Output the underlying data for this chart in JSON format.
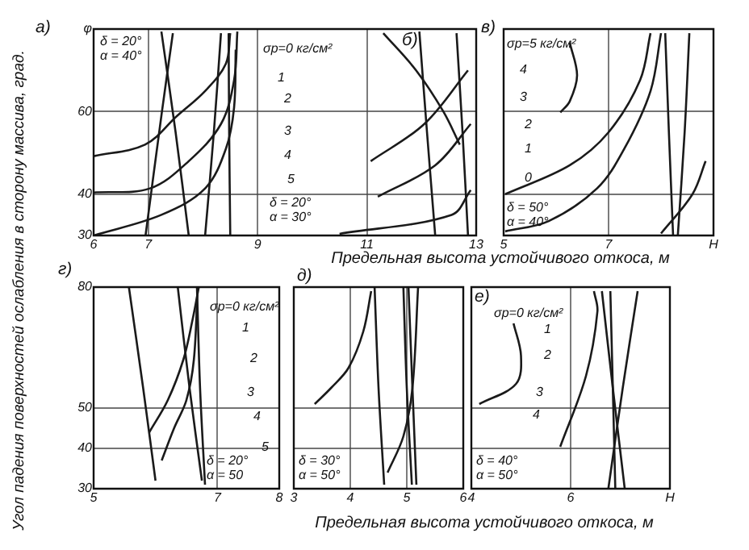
{
  "chart_data": [
    {
      "type": "line",
      "title": "а)",
      "ylabel": "Угол падения поверхностей ослабления в сторону массива, град.",
      "xlabel": "Предельная высота устойчивого откоса, м",
      "xlim": [
        6,
        13
      ],
      "xticks": [
        6,
        7,
        9,
        11,
        13
      ],
      "ylim": [
        30,
        80
      ],
      "yticks": [
        30,
        40,
        60,
        {
          "value": 80,
          "label": "φ"
        }
      ],
      "grid": true,
      "annotations": [
        "б)",
        "δ = 20°\nα = 40°",
        "δ = 20°\nα = 30°",
        "σр=0 кг/см²",
        "1",
        "2",
        "3",
        "4",
        "5"
      ],
      "series": [
        {
          "color": "#1a1a1a",
          "x": [
            6,
            6.94,
            7.53,
            8.04,
            8.42,
            8.5
          ],
          "values": [
            49.2,
            52,
            59,
            65,
            71.6,
            79
          ]
        },
        {
          "color": "#1a1a1a",
          "x": [
            6,
            7.03,
            7.74,
            8.33,
            8.57,
            8.63
          ],
          "values": [
            40.4,
            41.4,
            48,
            57,
            67.6,
            79.4
          ]
        },
        {
          "color": "#1a1a1a",
          "x": [
            6,
            7.24,
            8.04,
            8.42,
            8.57,
            8.6
          ],
          "values": [
            30,
            35,
            41.4,
            51,
            61,
            75
          ]
        },
        {
          "color": "#1a1a1a",
          "x": [
            7.24,
            7.5,
            7.74
          ],
          "values": [
            79.4,
            55,
            30
          ]
        },
        {
          "color": "#1a1a1a",
          "x": [
            7.45,
            7.25,
            6.95
          ],
          "values": [
            79,
            60,
            30
          ]
        },
        {
          "color": "#1a1a1a",
          "x": [
            8.33,
            8.2,
            8.04
          ],
          "values": [
            79,
            55,
            30
          ]
        },
        {
          "color": "#1a1a1a",
          "x": [
            8.47,
            8.48,
            8.5
          ],
          "values": [
            79,
            55,
            30
          ]
        },
        {
          "color": "#1a1a1a",
          "x": [
            10.5,
            12.55,
            12.9
          ],
          "values": [
            30.4,
            35,
            41
          ]
        },
        {
          "color": "#1a1a1a",
          "x": [
            11.2,
            12.25,
            12.9
          ],
          "values": [
            39.4,
            47,
            57
          ]
        },
        {
          "color": "#1a1a1a",
          "x": [
            11.07,
            12.05,
            12.85
          ],
          "values": [
            48,
            57,
            70
          ]
        },
        {
          "color": "#1a1a1a",
          "x": [
            11.3,
            11.9,
            12.4,
            12.7
          ],
          "values": [
            79,
            70,
            60,
            52
          ]
        },
        {
          "color": "#1a1a1a",
          "x": [
            11.96,
            12.1,
            12.25
          ],
          "values": [
            79.4,
            55,
            30
          ]
        },
        {
          "color": "#1a1a1a",
          "x": [
            12.64,
            12.75,
            12.85
          ],
          "values": [
            79,
            55,
            30
          ]
        }
      ]
    },
    {
      "type": "line",
      "title": "в)",
      "xlim": [
        5,
        9
      ],
      "xticks": [
        5,
        7,
        {
          "value": 9,
          "label": "H"
        }
      ],
      "ylim": [
        30,
        80
      ],
      "yticks": [
        30,
        40,
        60,
        80
      ],
      "tick_labels": "x",
      "grid": true,
      "annotations": [
        "σр=5 кг/см²",
        "4",
        "3",
        "2",
        "1",
        "0",
        "δ = 50°\nα = 40°"
      ],
      "series": [
        {
          "color": "#1a1a1a",
          "x": [
            6.26,
            6.4,
            6.26,
            6.08
          ],
          "values": [
            76.7,
            68.8,
            62.5,
            59.8
          ]
        },
        {
          "color": "#1a1a1a",
          "x": [
            5.03,
            5.86,
            6.78,
            7.3,
            7.8,
            8.0
          ],
          "values": [
            31,
            33.5,
            41.4,
            51,
            65,
            79
          ]
        },
        {
          "color": "#1a1a1a",
          "x": [
            5.03,
            6.26,
            7.0,
            7.6,
            7.8
          ],
          "values": [
            40,
            47,
            55,
            67.6,
            79
          ]
        },
        {
          "color": "#1a1a1a",
          "x": [
            8.08,
            8.15,
            8.23
          ],
          "values": [
            79,
            55,
            30
          ]
        },
        {
          "color": "#1a1a1a",
          "x": [
            8.54,
            8.45,
            8.32
          ],
          "values": [
            79,
            55,
            30
          ]
        },
        {
          "color": "#1a1a1a",
          "x": [
            8.0,
            8.6,
            8.85
          ],
          "values": [
            30.5,
            40,
            48
          ]
        }
      ]
    },
    {
      "type": "line",
      "title": "г)",
      "xlim": [
        5,
        8
      ],
      "xticks": [
        5,
        7,
        8
      ],
      "ylim": [
        30,
        80
      ],
      "yticks": [
        30,
        40,
        50,
        80
      ],
      "grid": true,
      "annotations": [
        "σр=0 кг/см²",
        "1",
        "2",
        "3",
        "4",
        "5",
        "δ = 20°\nα = 50"
      ],
      "series": [
        {
          "color": "#1a1a1a",
          "x": [
            5.57,
            5.8,
            6.0
          ],
          "values": [
            80,
            55,
            32
          ]
        },
        {
          "color": "#1a1a1a",
          "x": [
            6.36,
            6.55,
            6.75
          ],
          "values": [
            80,
            55,
            32
          ]
        },
        {
          "color": "#1a1a1a",
          "x": [
            6.67,
            6.72,
            6.8
          ],
          "values": [
            80,
            55,
            31
          ]
        },
        {
          "color": "#1a1a1a",
          "x": [
            5.9,
            6.2,
            6.45,
            6.6,
            6.7
          ],
          "values": [
            44,
            52,
            62,
            72,
            80
          ]
        },
        {
          "color": "#1a1a1a",
          "x": [
            6.1,
            6.3,
            6.5,
            6.62,
            6.68
          ],
          "values": [
            37,
            45,
            52,
            62,
            80
          ]
        }
      ]
    },
    {
      "type": "line",
      "title": "д)",
      "xlabel": "Предельная высота устойчивого откоса, м",
      "xlim": [
        3,
        6
      ],
      "xticks": [
        3,
        4,
        5,
        6
      ],
      "ylim": [
        30,
        80
      ],
      "yticks": [
        30,
        40,
        50,
        80
      ],
      "tick_labels": "x",
      "grid": true,
      "annotations": [
        "δ = 30°\nα = 50°"
      ],
      "series": [
        {
          "color": "#1a1a1a",
          "x": [
            3.37,
            3.66,
            3.97,
            4.23,
            4.37
          ],
          "values": [
            51,
            55,
            60,
            69,
            79
          ]
        },
        {
          "color": "#1a1a1a",
          "x": [
            4.43,
            4.5,
            4.6
          ],
          "values": [
            80,
            55,
            31
          ]
        },
        {
          "color": "#1a1a1a",
          "x": [
            4.94,
            5.0,
            5.09
          ],
          "values": [
            80,
            55,
            31
          ]
        },
        {
          "color": "#1a1a1a",
          "x": [
            5.03,
            5.1,
            5.17
          ],
          "values": [
            80,
            55,
            31
          ]
        },
        {
          "color": "#1a1a1a",
          "x": [
            4.66,
            4.94,
            5.1,
            5.2
          ],
          "values": [
            34,
            43,
            55,
            80
          ]
        }
      ]
    },
    {
      "type": "line",
      "title": "е)",
      "xlim": [
        4,
        8
      ],
      "xticks": [
        4,
        6,
        {
          "value": 8,
          "label": "H"
        }
      ],
      "ylim": [
        30,
        80
      ],
      "yticks": [
        30,
        40,
        50,
        80
      ],
      "tick_labels": "x",
      "grid": true,
      "annotations": [
        "σр=0 кг/см²",
        "1",
        "2",
        "3",
        "4",
        "δ = 40°\nα = 50°"
      ],
      "series": [
        {
          "color": "#1a1a1a",
          "x": [
            4.85,
            5.0,
            4.9,
            4.16
          ],
          "values": [
            71,
            63,
            56,
            51
          ]
        },
        {
          "color": "#1a1a1a",
          "x": [
            5.79,
            6.31,
            6.54,
            6.47
          ],
          "values": [
            40.4,
            58,
            74,
            79
          ]
        },
        {
          "color": "#1a1a1a",
          "x": [
            6.63,
            6.85,
            7.09
          ],
          "values": [
            79,
            55,
            30
          ]
        },
        {
          "color": "#1a1a1a",
          "x": [
            6.8,
            6.85,
            6.9
          ],
          "values": [
            79,
            55,
            30
          ]
        },
        {
          "color": "#1a1a1a",
          "x": [
            7.35,
            7.05,
            6.76
          ],
          "values": [
            79,
            55,
            30
          ]
        }
      ]
    }
  ]
}
